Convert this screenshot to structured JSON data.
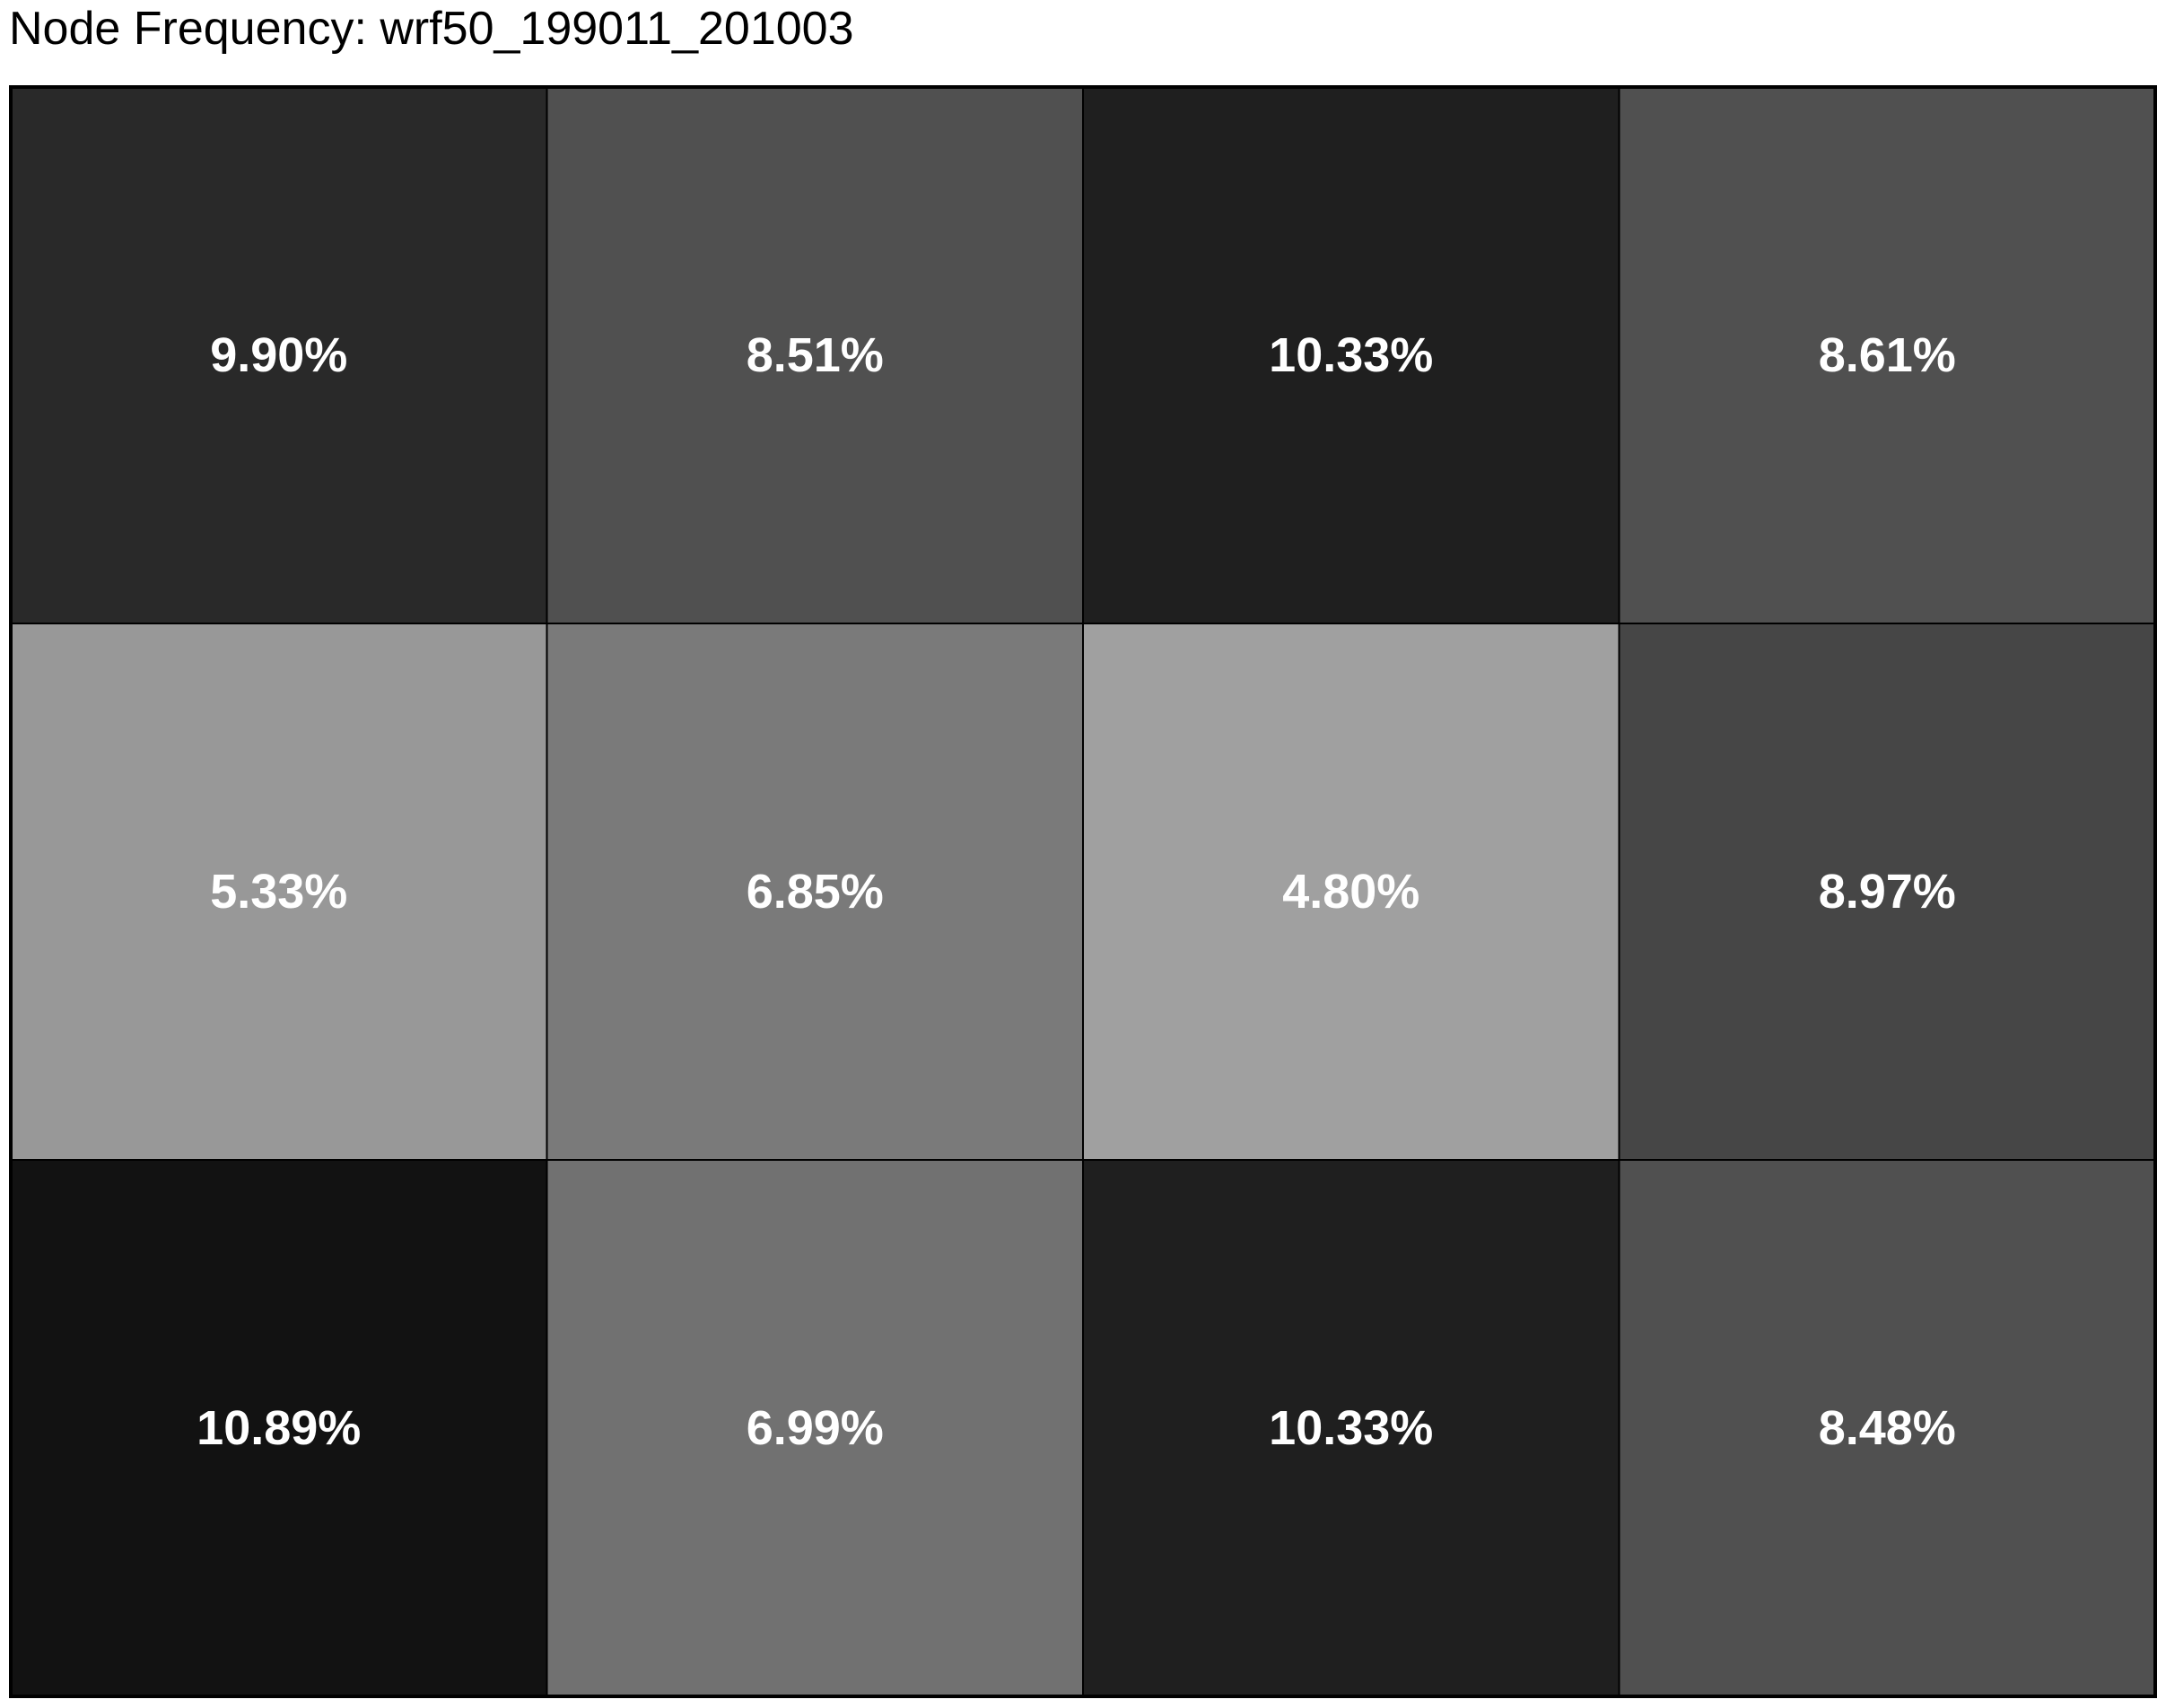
{
  "chart_data": {
    "type": "heatmap",
    "title": "Node Frequency: wrf50_199011_201003",
    "rows": 3,
    "cols": 4,
    "values": [
      [
        9.9,
        8.51,
        10.33,
        8.61
      ],
      [
        5.33,
        6.85,
        4.8,
        8.97
      ],
      [
        10.89,
        6.99,
        10.33,
        8.48
      ]
    ],
    "labels": [
      [
        "9.90%",
        "8.51%",
        "10.33%",
        "8.61%"
      ],
      [
        "5.33%",
        "6.85%",
        "4.80%",
        "8.97%"
      ],
      [
        "10.89%",
        "6.99%",
        "10.33%",
        "8.48%"
      ]
    ],
    "colors": [
      [
        "#292929",
        "#505050",
        "#1f1f1f",
        "#505050"
      ],
      [
        "#989898",
        "#7a7a7a",
        "#a0a0a0",
        "#464646"
      ],
      [
        "#121212",
        "#717171",
        "#1f1f1f",
        "#505050"
      ]
    ],
    "colormap": "grayscale (darker = higher frequency)",
    "grid_lines": true
  }
}
